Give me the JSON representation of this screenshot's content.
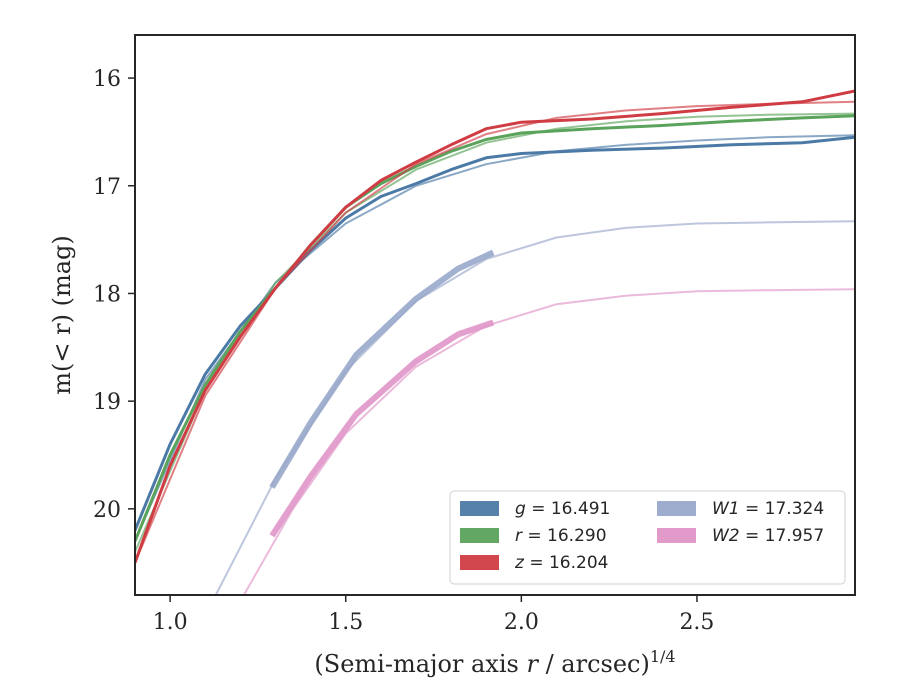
{
  "chart_data": {
    "type": "line",
    "xlabel": "(Semi-major axis r / arcsec)",
    "xlabel_exponent": "1/4",
    "ylabel": "m(< r) (mag)",
    "xlim": [
      0.9,
      2.95
    ],
    "ylim": [
      20.8,
      15.6
    ],
    "y_inverted": true,
    "grid": false,
    "legend_position": "lower-right",
    "x_ticks": [
      1.0,
      1.5,
      2.0,
      2.5
    ],
    "x_tick_labels": [
      "1.0",
      "1.5",
      "2.0",
      "2.5"
    ],
    "y_ticks": [
      16,
      17,
      18,
      19,
      20
    ],
    "y_tick_labels": [
      "16",
      "17",
      "18",
      "19",
      "20"
    ],
    "series": [
      {
        "name": "g = 16.491",
        "label_var": "g",
        "label_val": "= 16.491",
        "color": "#4c7aa6",
        "data": [
          [
            0.9,
            20.2
          ],
          [
            1.0,
            19.4
          ],
          [
            1.1,
            18.75
          ],
          [
            1.2,
            18.3
          ],
          [
            1.3,
            17.95
          ],
          [
            1.4,
            17.6
          ],
          [
            1.5,
            17.3
          ],
          [
            1.6,
            17.1
          ],
          [
            1.7,
            16.98
          ],
          [
            1.8,
            16.85
          ],
          [
            1.9,
            16.74
          ],
          [
            2.0,
            16.7
          ],
          [
            2.2,
            16.67
          ],
          [
            2.4,
            16.65
          ],
          [
            2.6,
            16.62
          ],
          [
            2.8,
            16.6
          ],
          [
            2.95,
            16.55
          ]
        ],
        "model": [
          [
            0.9,
            20.3
          ],
          [
            1.1,
            18.8
          ],
          [
            1.3,
            17.9
          ],
          [
            1.5,
            17.35
          ],
          [
            1.7,
            17.0
          ],
          [
            1.9,
            16.8
          ],
          [
            2.1,
            16.68
          ],
          [
            2.3,
            16.62
          ],
          [
            2.5,
            16.58
          ],
          [
            2.7,
            16.55
          ],
          [
            2.95,
            16.53
          ]
        ]
      },
      {
        "name": "r = 16.290",
        "label_var": "r",
        "label_val": "= 16.290",
        "color": "#5aa35a",
        "data": [
          [
            0.9,
            20.3
          ],
          [
            1.0,
            19.5
          ],
          [
            1.1,
            18.85
          ],
          [
            1.2,
            18.35
          ],
          [
            1.3,
            17.95
          ],
          [
            1.4,
            17.55
          ],
          [
            1.5,
            17.2
          ],
          [
            1.6,
            16.98
          ],
          [
            1.7,
            16.82
          ],
          [
            1.8,
            16.68
          ],
          [
            1.9,
            16.57
          ],
          [
            2.0,
            16.51
          ],
          [
            2.2,
            16.47
          ],
          [
            2.4,
            16.44
          ],
          [
            2.6,
            16.4
          ],
          [
            2.8,
            16.37
          ],
          [
            2.95,
            16.35
          ]
        ],
        "model": [
          [
            0.9,
            20.4
          ],
          [
            1.1,
            18.9
          ],
          [
            1.3,
            17.9
          ],
          [
            1.5,
            17.25
          ],
          [
            1.7,
            16.85
          ],
          [
            1.9,
            16.6
          ],
          [
            2.1,
            16.47
          ],
          [
            2.3,
            16.4
          ],
          [
            2.5,
            16.36
          ],
          [
            2.7,
            16.34
          ],
          [
            2.95,
            16.33
          ]
        ]
      },
      {
        "name": "z = 16.204",
        "label_var": "z",
        "label_val": "= 16.204",
        "color": "#d03c44",
        "data": [
          [
            0.9,
            20.5
          ],
          [
            1.0,
            19.6
          ],
          [
            1.1,
            18.9
          ],
          [
            1.2,
            18.4
          ],
          [
            1.3,
            17.95
          ],
          [
            1.4,
            17.55
          ],
          [
            1.5,
            17.2
          ],
          [
            1.6,
            16.95
          ],
          [
            1.7,
            16.78
          ],
          [
            1.8,
            16.62
          ],
          [
            1.9,
            16.47
          ],
          [
            2.0,
            16.41
          ],
          [
            2.2,
            16.38
          ],
          [
            2.4,
            16.33
          ],
          [
            2.6,
            16.27
          ],
          [
            2.8,
            16.22
          ],
          [
            2.95,
            16.12
          ]
        ],
        "model": [
          [
            0.9,
            20.5
          ],
          [
            1.1,
            18.95
          ],
          [
            1.3,
            17.95
          ],
          [
            1.5,
            17.25
          ],
          [
            1.7,
            16.8
          ],
          [
            1.9,
            16.52
          ],
          [
            2.1,
            16.37
          ],
          [
            2.3,
            16.3
          ],
          [
            2.5,
            16.26
          ],
          [
            2.7,
            16.24
          ],
          [
            2.95,
            16.22
          ]
        ]
      },
      {
        "name": "W1 = 17.324",
        "label_var": "W1",
        "label_val": "= 17.324",
        "color": "#99a8cb",
        "data": [
          [
            1.29,
            19.8
          ],
          [
            1.4,
            19.2
          ],
          [
            1.53,
            18.57
          ],
          [
            1.7,
            18.05
          ],
          [
            1.82,
            17.77
          ],
          [
            1.92,
            17.62
          ]
        ],
        "model": [
          [
            1.13,
            20.8
          ],
          [
            1.3,
            19.72
          ],
          [
            1.5,
            18.72
          ],
          [
            1.7,
            18.07
          ],
          [
            1.9,
            17.68
          ],
          [
            2.1,
            17.48
          ],
          [
            2.3,
            17.39
          ],
          [
            2.5,
            17.35
          ],
          [
            2.7,
            17.34
          ],
          [
            2.95,
            17.33
          ]
        ]
      },
      {
        "name": "W2 = 17.957",
        "label_var": "W2",
        "label_val": "= 17.957",
        "color": "#e095c8",
        "data": [
          [
            1.29,
            20.25
          ],
          [
            1.4,
            19.7
          ],
          [
            1.53,
            19.12
          ],
          [
            1.7,
            18.63
          ],
          [
            1.82,
            18.38
          ],
          [
            1.92,
            18.27
          ]
        ],
        "model": [
          [
            1.21,
            20.8
          ],
          [
            1.35,
            20.0
          ],
          [
            1.5,
            19.3
          ],
          [
            1.7,
            18.68
          ],
          [
            1.9,
            18.3
          ],
          [
            2.1,
            18.1
          ],
          [
            2.3,
            18.02
          ],
          [
            2.5,
            17.98
          ],
          [
            2.7,
            17.97
          ],
          [
            2.95,
            17.96
          ]
        ]
      }
    ]
  }
}
